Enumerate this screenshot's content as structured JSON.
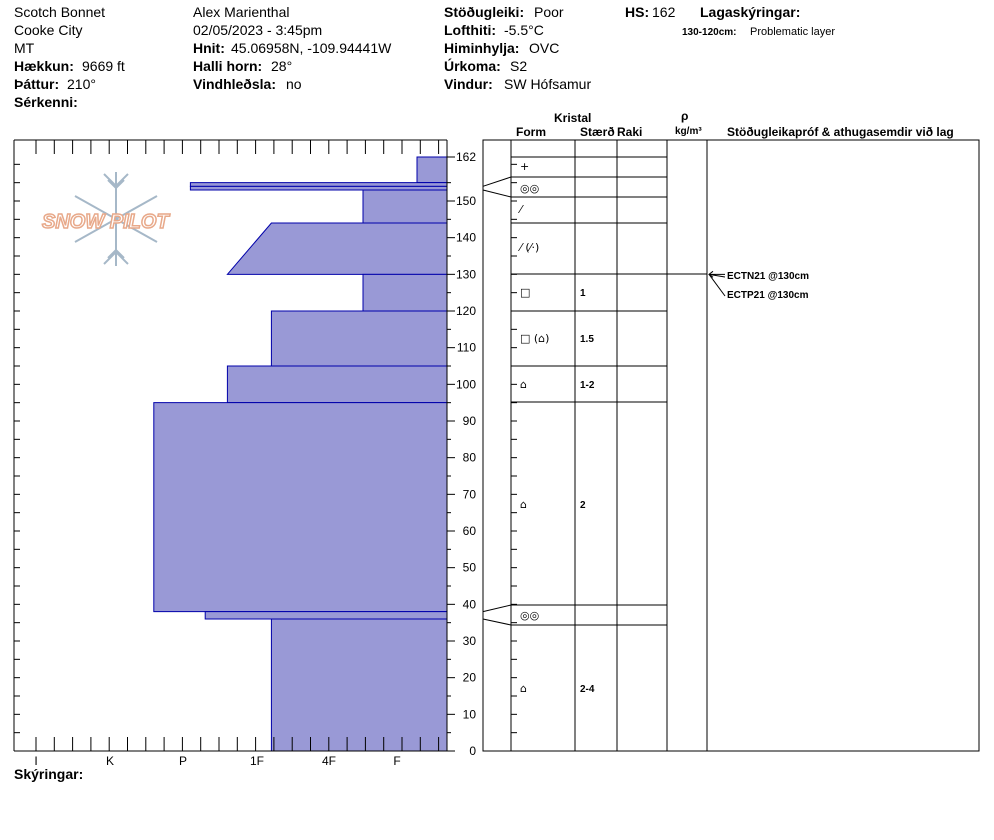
{
  "header": {
    "location": "Scotch Bonnet",
    "city": "Cooke City",
    "state": "MT",
    "elevation_label": "Hækkun:",
    "elevation_value": "9669 ft",
    "aspect_label": "Þáttur:",
    "aspect_value": "210°",
    "features_label": "Sérkenni:",
    "observer": "Alex Marienthal",
    "datetime": "02/05/2023 - 3:45pm",
    "coords_label": "Hnit:",
    "coords_value": "45.06958N, -109.94441W",
    "slope_label": "Halli horn:",
    "slope_value": "28°",
    "wind_loading_label": "Vindhleðsla:",
    "wind_loading_value": "no",
    "stability_label": "Stöðugleiki:",
    "stability_value": "Poor",
    "air_temp_label": "Lofthiti:",
    "air_temp_value": "-5.5°C",
    "sky_label": "Himinhylja:",
    "sky_value": "OVC",
    "precip_label": "Úrkoma:",
    "precip_value": "S2",
    "wind_label": "Vindur:",
    "wind_value": "SW Hófsamur",
    "hs_label": "HS:",
    "hs_value": "162",
    "layer_notes_label": "Lagaskýringar:",
    "layer_note_range": "130-120cm:",
    "layer_note_text": "Problematic layer",
    "notes_label": "Skýringar:"
  },
  "logo_text": "SNOW PILOT",
  "columns": {
    "crystal": "Kristal",
    "form": "Form",
    "size": "Stærð",
    "moisture": "Raki",
    "rho": "ρ",
    "density_unit": "kg/m³",
    "tests": "Stöðugleikapróf & athugasemdir við lag"
  },
  "tests": [
    {
      "text": "ECTN21 @130cm",
      "depth": 130
    },
    {
      "text": "ECTP21 @130cm",
      "depth": 130
    }
  ],
  "colors": {
    "hardness_fill": "#9999d6",
    "hardness_stroke": "#0000aa",
    "logo_blue": "#a6b8c8",
    "logo_orange": "#e8a98a"
  },
  "chart_data": {
    "type": "snow_profile",
    "y_axis": {
      "min": 0,
      "max": 162,
      "ticks": [
        0,
        10,
        20,
        30,
        40,
        50,
        60,
        70,
        80,
        90,
        100,
        110,
        120,
        130,
        140,
        150,
        162
      ]
    },
    "hardness_ticks": [
      "I",
      "K",
      "P",
      "1F",
      "4F",
      "F"
    ],
    "hardness_index": {
      "F": 1,
      "4F": 2,
      "1F": 3,
      "P": 4,
      "K": 5,
      "I": 6
    },
    "layers": [
      {
        "top": 162,
        "bottom": 155,
        "hardness_top": 0.6,
        "hardness_bottom": 0.6,
        "form": "+",
        "size": ""
      },
      {
        "top": 155,
        "bottom": 154,
        "hardness_top": 3.9,
        "hardness_bottom": 3.9,
        "form": "◎◎",
        "size": ""
      },
      {
        "top": 154,
        "bottom": 153,
        "hardness_top": 3.9,
        "hardness_bottom": 3.9,
        "form": "◎◎",
        "size": ""
      },
      {
        "top": 153,
        "bottom": 144,
        "hardness_top": 1.5,
        "hardness_bottom": 1.5,
        "form": "⁄",
        "size": ""
      },
      {
        "top": 144,
        "bottom": 130,
        "hardness_top": 2.8,
        "hardness_bottom": 3.4,
        "form": "⁄ (⁄·)",
        "size": ""
      },
      {
        "top": 130,
        "bottom": 120,
        "hardness_top": 1.5,
        "hardness_bottom": 1.5,
        "form": "□",
        "size": "1"
      },
      {
        "top": 120,
        "bottom": 105,
        "hardness_top": 2.8,
        "hardness_bottom": 2.8,
        "form": "□ (⌂)",
        "size": "1.5"
      },
      {
        "top": 105,
        "bottom": 95,
        "hardness_top": 3.4,
        "hardness_bottom": 3.4,
        "form": "⌂",
        "size": "1-2"
      },
      {
        "top": 95,
        "bottom": 38,
        "hardness_top": 4.4,
        "hardness_bottom": 4.4,
        "form": "⌂",
        "size": "2"
      },
      {
        "top": 38,
        "bottom": 36,
        "hardness_top": 3.7,
        "hardness_bottom": 3.7,
        "form": "◎◎",
        "size": ""
      },
      {
        "top": 36,
        "bottom": 0,
        "hardness_top": 2.8,
        "hardness_bottom": 2.8,
        "form": "⌂",
        "size": "2-4"
      }
    ],
    "grid": false
  }
}
